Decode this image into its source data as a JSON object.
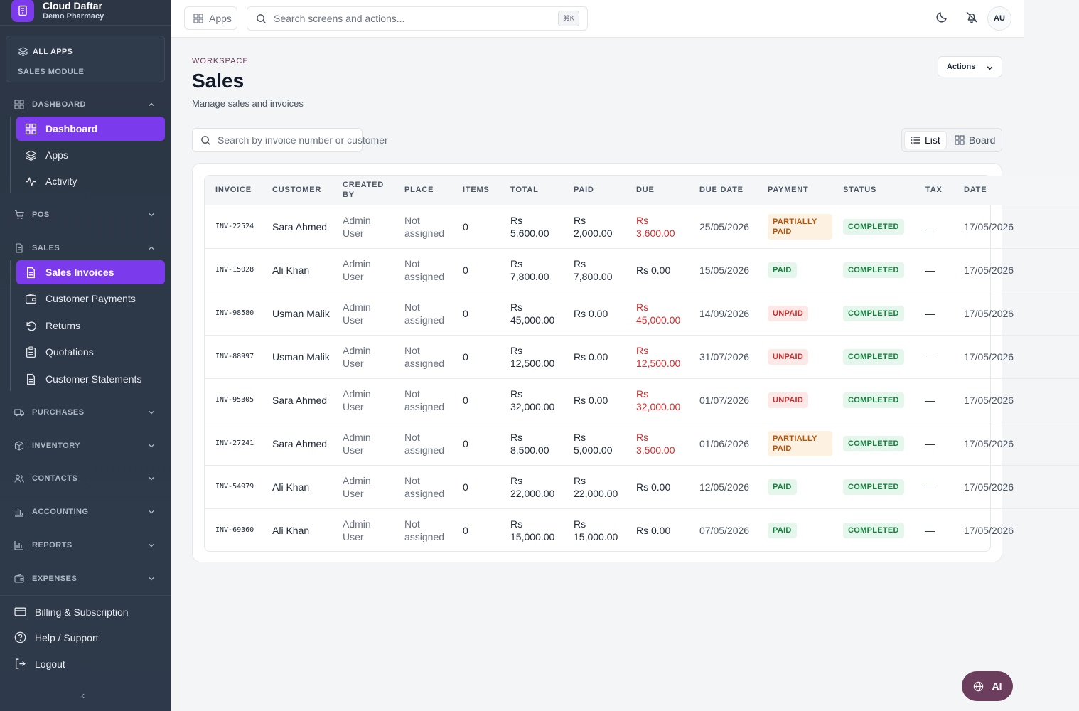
{
  "brand": {
    "name": "Cloud Daftar",
    "subtitle": "Demo Pharmacy"
  },
  "sidebar": {
    "all_apps": "ALL APPS",
    "module": "SALES MODULE",
    "sections": {
      "dashboard": "DASHBOARD",
      "pos": "POS",
      "sales": "SALES",
      "purchases": "PURCHASES",
      "inventory": "INVENTORY",
      "contacts": "CONTACTS",
      "accounting": "ACCOUNTING",
      "reports": "REPORTS",
      "expenses": "EXPENSES"
    },
    "dashboard_items": [
      "Dashboard",
      "Apps",
      "Activity"
    ],
    "sales_items": [
      "Sales Invoices",
      "Customer Payments",
      "Returns",
      "Quotations",
      "Customer Statements"
    ],
    "bottom": {
      "billing": "Billing & Subscription",
      "help": "Help / Support",
      "logout": "Logout",
      "collapse": "‹"
    }
  },
  "topbar": {
    "apps_label": "Apps",
    "search_placeholder": "Search screens and actions...",
    "shortcut": "⌘K",
    "avatar_initials": "AU"
  },
  "page": {
    "eyebrow": "WORKSPACE",
    "title": "Sales",
    "subtitle": "Manage sales and invoices",
    "actions_label": "Actions",
    "search_placeholder": "Search by invoice number or customer",
    "view_list": "List",
    "view_board": "Board"
  },
  "table": {
    "headers": [
      "INVOICE",
      "CUSTOMER",
      "CREATED BY",
      "PLACE",
      "ITEMS",
      "TOTAL",
      "PAID",
      "DUE",
      "DUE DATE",
      "PAYMENT",
      "STATUS",
      "TAX",
      "DATE"
    ],
    "rows": [
      {
        "invoice": "INV-22524",
        "customer": "Sara Ahmed",
        "created_by": "Admin User",
        "place": "Not assigned",
        "items": "0",
        "total": "Rs 5,600.00",
        "paid": "Rs 2,000.00",
        "due": "Rs 3,600.00",
        "due_date": "25/05/2026",
        "payment": "PARTIALLY PAID",
        "status": "COMPLETED",
        "tax": "—",
        "date": "17/05/2026"
      },
      {
        "invoice": "INV-15028",
        "customer": "Ali Khan",
        "created_by": "Admin User",
        "place": "Not assigned",
        "items": "0",
        "total": "Rs 7,800.00",
        "paid": "Rs 7,800.00",
        "due": "Rs 0.00",
        "due_date": "15/05/2026",
        "payment": "PAID",
        "status": "COMPLETED",
        "tax": "—",
        "date": "17/05/2026"
      },
      {
        "invoice": "INV-98580",
        "customer": "Usman Malik",
        "created_by": "Admin User",
        "place": "Not assigned",
        "items": "0",
        "total": "Rs 45,000.00",
        "paid": "Rs 0.00",
        "due": "Rs 45,000.00",
        "due_date": "14/09/2026",
        "payment": "UNPAID",
        "status": "COMPLETED",
        "tax": "—",
        "date": "17/05/2026"
      },
      {
        "invoice": "INV-88997",
        "customer": "Usman Malik",
        "created_by": "Admin User",
        "place": "Not assigned",
        "items": "0",
        "total": "Rs 12,500.00",
        "paid": "Rs 0.00",
        "due": "Rs 12,500.00",
        "due_date": "31/07/2026",
        "payment": "UNPAID",
        "status": "COMPLETED",
        "tax": "—",
        "date": "17/05/2026"
      },
      {
        "invoice": "INV-95305",
        "customer": "Sara Ahmed",
        "created_by": "Admin User",
        "place": "Not assigned",
        "items": "0",
        "total": "Rs 32,000.00",
        "paid": "Rs 0.00",
        "due": "Rs 32,000.00",
        "due_date": "01/07/2026",
        "payment": "UNPAID",
        "status": "COMPLETED",
        "tax": "—",
        "date": "17/05/2026"
      },
      {
        "invoice": "INV-27241",
        "customer": "Sara Ahmed",
        "created_by": "Admin User",
        "place": "Not assigned",
        "items": "0",
        "total": "Rs 8,500.00",
        "paid": "Rs 5,000.00",
        "due": "Rs 3,500.00",
        "due_date": "01/06/2026",
        "payment": "PARTIALLY PAID",
        "status": "COMPLETED",
        "tax": "—",
        "date": "17/05/2026"
      },
      {
        "invoice": "INV-54979",
        "customer": "Ali Khan",
        "created_by": "Admin User",
        "place": "Not assigned",
        "items": "0",
        "total": "Rs 22,000.00",
        "paid": "Rs 22,000.00",
        "due": "Rs 0.00",
        "due_date": "12/05/2026",
        "payment": "PAID",
        "status": "COMPLETED",
        "tax": "—",
        "date": "17/05/2026"
      },
      {
        "invoice": "INV-69360",
        "customer": "Ali Khan",
        "created_by": "Admin User",
        "place": "Not assigned",
        "items": "0",
        "total": "Rs 15,000.00",
        "paid": "Rs 15,000.00",
        "due": "Rs 0.00",
        "due_date": "07/05/2026",
        "payment": "PAID",
        "status": "COMPLETED",
        "tax": "—",
        "date": "17/05/2026"
      }
    ]
  },
  "ai_button": "AI",
  "colors": {
    "accent": "#7c3aed",
    "sidebar": "#2d3748",
    "ai": "#6b3e5d",
    "due_red": "#d92d2d"
  }
}
